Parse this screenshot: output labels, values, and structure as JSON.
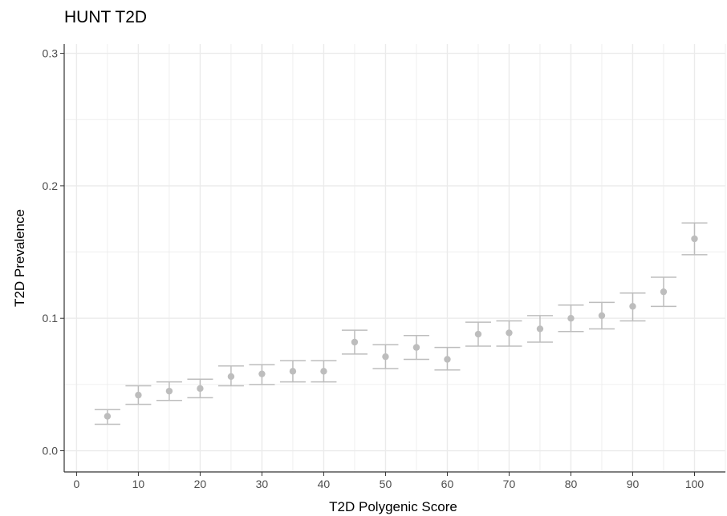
{
  "chart_data": {
    "type": "scatter",
    "title": "HUNT T2D",
    "xlabel": "T2D Polygenic Score",
    "ylabel": "T2D Prevalence",
    "xlim": [
      -2,
      105
    ],
    "ylim": [
      -0.016,
      0.307
    ],
    "x_ticks": [
      0,
      10,
      20,
      30,
      40,
      50,
      60,
      70,
      80,
      90,
      100
    ],
    "x_tick_labels": [
      "0",
      "10",
      "20",
      "30",
      "40",
      "50",
      "60",
      "70",
      "80",
      "90",
      "100"
    ],
    "y_ticks": [
      0.0,
      0.1,
      0.2,
      0.3
    ],
    "y_tick_labels": [
      "0.0",
      "0.1",
      "0.2",
      "0.3"
    ],
    "x_minor_ticks": [
      5,
      15,
      25,
      35,
      45,
      55,
      65,
      75,
      85,
      95,
      105
    ],
    "y_minor_ticks": [
      0.05,
      0.15,
      0.25
    ],
    "grid": true,
    "colors": {
      "point": "#bdbdbd",
      "errorbar": "#bdbdbd",
      "grid": "#ebebeb",
      "axis": "#333333"
    },
    "points": [
      {
        "x": 5,
        "y": 0.026,
        "ymin": 0.02,
        "ymax": 0.031
      },
      {
        "x": 10,
        "y": 0.042,
        "ymin": 0.035,
        "ymax": 0.049
      },
      {
        "x": 15,
        "y": 0.045,
        "ymin": 0.038,
        "ymax": 0.052
      },
      {
        "x": 20,
        "y": 0.047,
        "ymin": 0.04,
        "ymax": 0.054
      },
      {
        "x": 25,
        "y": 0.056,
        "ymin": 0.049,
        "ymax": 0.064
      },
      {
        "x": 30,
        "y": 0.058,
        "ymin": 0.05,
        "ymax": 0.065
      },
      {
        "x": 35,
        "y": 0.06,
        "ymin": 0.052,
        "ymax": 0.068
      },
      {
        "x": 40,
        "y": 0.06,
        "ymin": 0.052,
        "ymax": 0.068
      },
      {
        "x": 45,
        "y": 0.082,
        "ymin": 0.073,
        "ymax": 0.091
      },
      {
        "x": 50,
        "y": 0.071,
        "ymin": 0.062,
        "ymax": 0.08
      },
      {
        "x": 55,
        "y": 0.078,
        "ymin": 0.069,
        "ymax": 0.087
      },
      {
        "x": 60,
        "y": 0.069,
        "ymin": 0.061,
        "ymax": 0.078
      },
      {
        "x": 65,
        "y": 0.088,
        "ymin": 0.079,
        "ymax": 0.097
      },
      {
        "x": 70,
        "y": 0.089,
        "ymin": 0.079,
        "ymax": 0.098
      },
      {
        "x": 75,
        "y": 0.092,
        "ymin": 0.082,
        "ymax": 0.102
      },
      {
        "x": 80,
        "y": 0.1,
        "ymin": 0.09,
        "ymax": 0.11
      },
      {
        "x": 85,
        "y": 0.102,
        "ymin": 0.092,
        "ymax": 0.112
      },
      {
        "x": 90,
        "y": 0.109,
        "ymin": 0.098,
        "ymax": 0.119
      },
      {
        "x": 95,
        "y": 0.12,
        "ymin": 0.109,
        "ymax": 0.131
      },
      {
        "x": 100,
        "y": 0.16,
        "ymin": 0.148,
        "ymax": 0.172
      }
    ]
  }
}
